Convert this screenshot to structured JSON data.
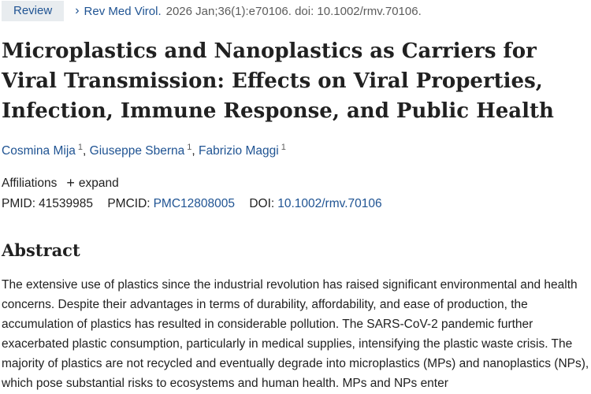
{
  "header": {
    "badge": "Review",
    "journal_link": "Rev Med Virol.",
    "citation": "2026 Jan;36(1):e70106. doi: 10.1002/rmv.70106."
  },
  "article": {
    "title": "Microplastics and Nanoplastics as Carriers for Viral Transmission: Effects on Viral Properties, Infection, Immune Response, and Public Health",
    "authors": [
      {
        "name": "Cosmina Mija",
        "sup": "1"
      },
      {
        "name": "Giuseppe Sberna",
        "sup": "1"
      },
      {
        "name": "Fabrizio Maggi",
        "sup": "1"
      }
    ],
    "author_separator": ",",
    "affiliations_label": "Affiliations",
    "expand_label": "expand",
    "pmid_label": "PMID:",
    "pmid": "41539985",
    "pmcid_label": "PMCID:",
    "pmcid": "PMC12808005",
    "doi_label": "DOI:",
    "doi": "10.1002/rmv.70106"
  },
  "abstract": {
    "heading": "Abstract",
    "text": "The extensive use of plastics since the industrial revolution has raised significant environmental and health concerns. Despite their advantages in terms of durability, affordability, and ease of production, the accumulation of plastics has resulted in considerable pollution. The SARS-CoV-2 pandemic further exacerbated plastic consumption, particularly in medical supplies, intensifying the plastic waste crisis. The majority of plastics are not recycled and eventually degrade into microplastics (MPs) and nanoplastics (NPs), which pose substantial risks to ecosystems and human health. MPs and NPs enter"
  },
  "icons": {
    "chevron": "chevron-right-icon",
    "plus": "plus-icon"
  }
}
